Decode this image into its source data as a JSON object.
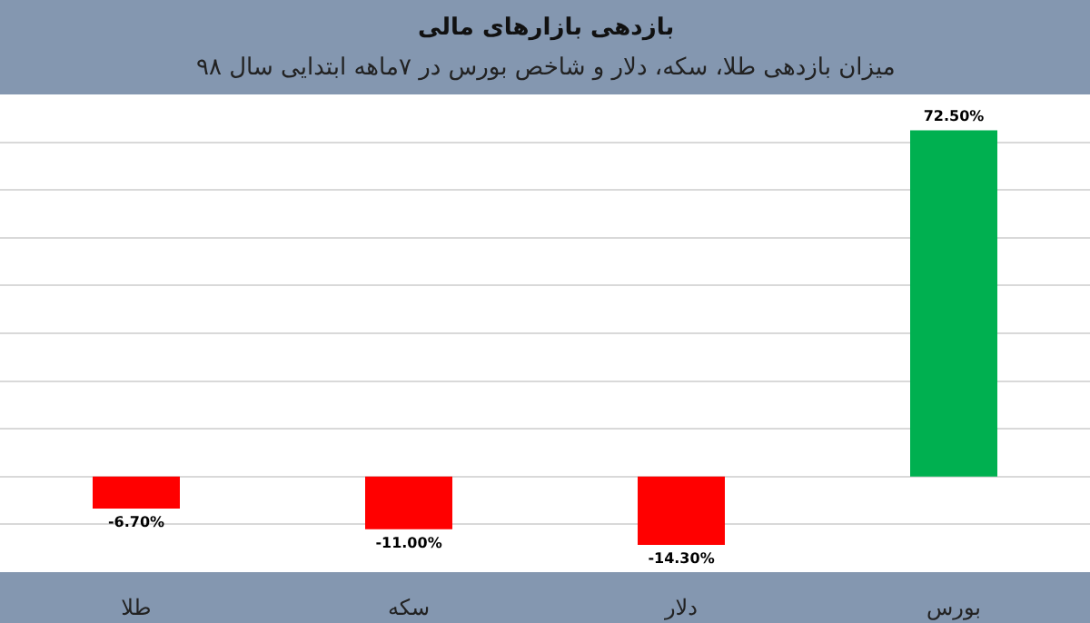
{
  "chart_data": {
    "type": "bar",
    "title": "بازدهی بازارهای مالی",
    "subtitle": "میزان بازدهی طلا، سکه، دلار و شاخص بورس در ۷ماهه ابتدایی سال ۹۸",
    "categories": [
      "طلا",
      "سکه",
      "دلار",
      "بورس"
    ],
    "values": [
      -6.7,
      -11.0,
      -14.3,
      72.5
    ],
    "colors": [
      "#ff0000",
      "#ff0000",
      "#ff0000",
      "#00b050"
    ],
    "value_labels": [
      "-6.70%",
      "-11.00%",
      "-14.30%",
      "72.50%"
    ],
    "ylim": [
      -20,
      80
    ],
    "yticks": [
      {
        "value": -20,
        "label": null
      },
      {
        "value": -10,
        "label": null
      },
      {
        "value": 0,
        "label": null
      },
      {
        "value": 10,
        "label": null
      },
      {
        "value": 20,
        "label": null
      },
      {
        "value": 30,
        "label": null
      },
      {
        "value": 40,
        "label": null
      },
      {
        "value": 50,
        "label": null
      },
      {
        "value": 60,
        "label": null
      },
      {
        "value": 70,
        "label": null
      }
    ],
    "grid": "y",
    "tick_labels": "x"
  }
}
